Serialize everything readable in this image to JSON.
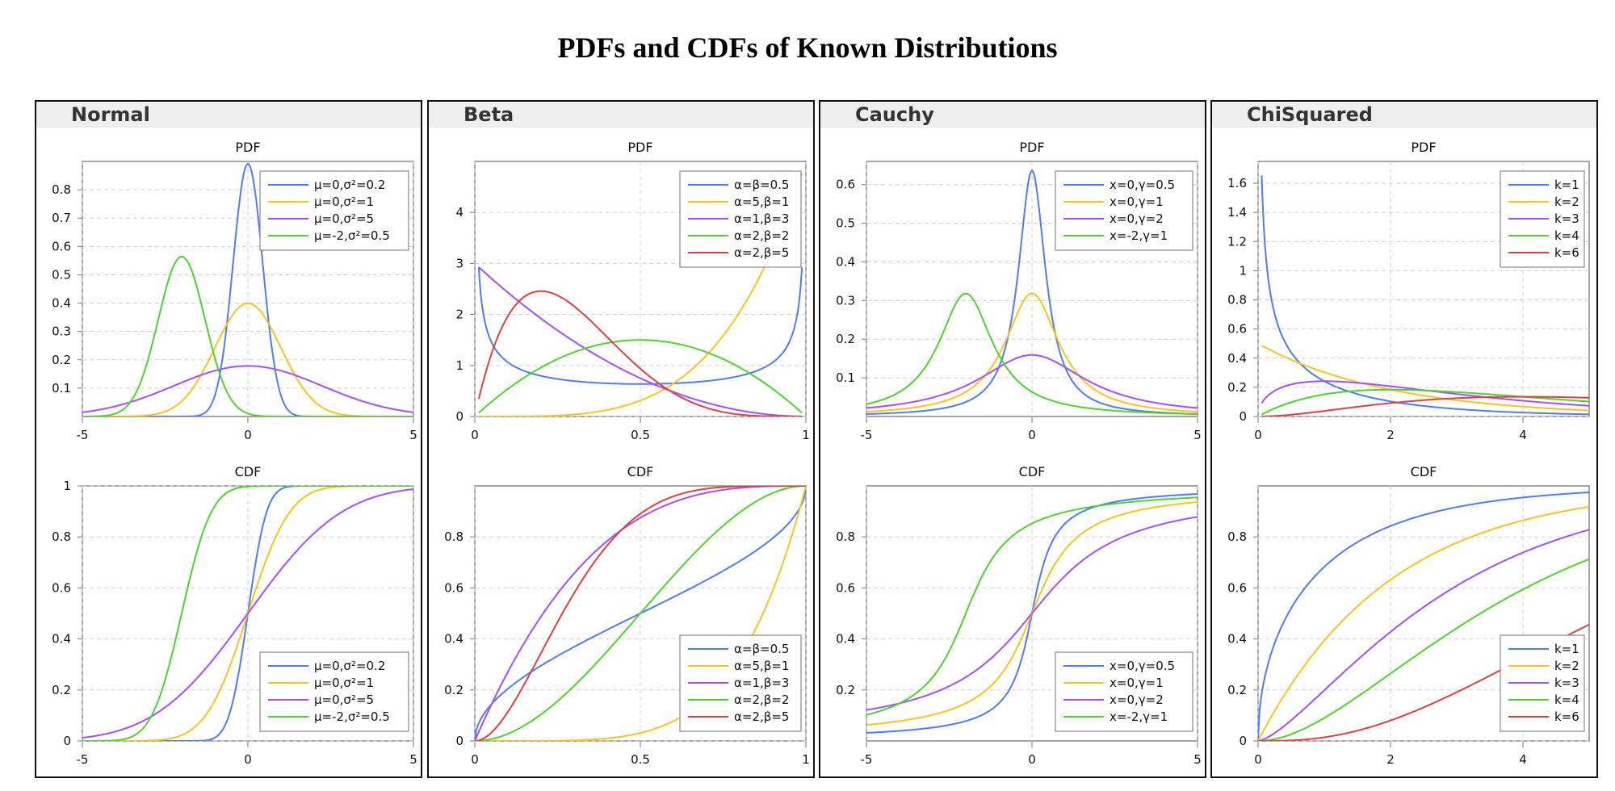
{
  "title": "PDFs and CDFs of Known Distributions",
  "colors": {
    "blue": "#4d7bff",
    "orange": "#ffc21a",
    "purple": "#a64dff",
    "green": "#4dd42b",
    "red": "#e0403d"
  },
  "panels": [
    {
      "name": "Normal",
      "pdf_title": "PDF",
      "cdf_title": "CDF"
    },
    {
      "name": "Beta",
      "pdf_title": "PDF",
      "cdf_title": "CDF"
    },
    {
      "name": "Cauchy",
      "pdf_title": "PDF",
      "cdf_title": "CDF"
    },
    {
      "name": "ChiSquared",
      "pdf_title": "PDF",
      "cdf_title": "CDF"
    }
  ],
  "chart_data": [
    {
      "type": "line",
      "panel": "Normal",
      "title": "PDF",
      "function": "pdf",
      "distribution": "normal",
      "xlim": [
        -5,
        5
      ],
      "ylim": [
        0,
        0.9
      ],
      "xticks": [
        -5,
        0,
        5
      ],
      "yticks": [
        0.1,
        0.2,
        0.3,
        0.4,
        0.5,
        0.6,
        0.7,
        0.8
      ],
      "legend": "top-right",
      "grid": true,
      "series": [
        {
          "name": "μ=0,σ²=0.2",
          "color": "blue",
          "params": [
            0,
            0.2
          ]
        },
        {
          "name": "μ=0,σ²=1",
          "color": "orange",
          "params": [
            0,
            1
          ]
        },
        {
          "name": "μ=0,σ²=5",
          "color": "purple",
          "params": [
            0,
            5
          ]
        },
        {
          "name": "μ=-2,σ²=0.5",
          "color": "green",
          "params": [
            -2,
            0.5
          ]
        }
      ]
    },
    {
      "type": "line",
      "panel": "Normal",
      "title": "CDF",
      "function": "cdf",
      "distribution": "normal",
      "xlim": [
        -5,
        5
      ],
      "ylim": [
        0,
        1
      ],
      "xticks": [
        -5,
        0,
        5
      ],
      "yticks": [
        0,
        0.2,
        0.4,
        0.6,
        0.8,
        1
      ],
      "legend": "bottom-right",
      "grid": true,
      "series": [
        {
          "name": "μ=0,σ²=0.2",
          "color": "blue",
          "params": [
            0,
            0.2
          ]
        },
        {
          "name": "μ=0,σ²=1",
          "color": "orange",
          "params": [
            0,
            1
          ]
        },
        {
          "name": "μ=0,σ²=5",
          "color": "purple",
          "params": [
            0,
            5
          ]
        },
        {
          "name": "μ=-2,σ²=0.5",
          "color": "green",
          "params": [
            -2,
            0.5
          ]
        }
      ]
    },
    {
      "type": "line",
      "panel": "Beta",
      "title": "PDF",
      "function": "pdf",
      "distribution": "beta",
      "xlim": [
        0,
        1
      ],
      "ylim": [
        0,
        5
      ],
      "xticks": [
        0,
        0.5,
        1
      ],
      "yticks": [
        0,
        1,
        2,
        3,
        4
      ],
      "legend": "top-right",
      "grid": true,
      "series": [
        {
          "name": "α=β=0.5",
          "color": "blue",
          "params": [
            0.5,
            0.5
          ]
        },
        {
          "name": "α=5,β=1",
          "color": "orange",
          "params": [
            5,
            1
          ]
        },
        {
          "name": "α=1,β=3",
          "color": "purple",
          "params": [
            1,
            3
          ]
        },
        {
          "name": "α=2,β=2",
          "color": "green",
          "params": [
            2,
            2
          ]
        },
        {
          "name": "α=2,β=5",
          "color": "red",
          "params": [
            2,
            5
          ]
        }
      ]
    },
    {
      "type": "line",
      "panel": "Beta",
      "title": "CDF",
      "function": "cdf",
      "distribution": "beta",
      "xlim": [
        0,
        1
      ],
      "ylim": [
        0,
        1
      ],
      "xticks": [
        0,
        0.5,
        1
      ],
      "yticks": [
        0,
        0.2,
        0.4,
        0.6,
        0.8
      ],
      "legend": "bottom-right",
      "grid": true,
      "series": [
        {
          "name": "α=β=0.5",
          "color": "blue",
          "params": [
            0.5,
            0.5
          ]
        },
        {
          "name": "α=5,β=1",
          "color": "orange",
          "params": [
            5,
            1
          ]
        },
        {
          "name": "α=1,β=3",
          "color": "purple",
          "params": [
            1,
            3
          ]
        },
        {
          "name": "α=2,β=2",
          "color": "green",
          "params": [
            2,
            2
          ]
        },
        {
          "name": "α=2,β=5",
          "color": "red",
          "params": [
            2,
            5
          ]
        }
      ]
    },
    {
      "type": "line",
      "panel": "Cauchy",
      "title": "PDF",
      "function": "pdf",
      "distribution": "cauchy",
      "xlim": [
        -5,
        5
      ],
      "ylim": [
        0,
        0.66
      ],
      "xticks": [
        -5,
        0,
        5
      ],
      "yticks": [
        0.1,
        0.2,
        0.3,
        0.4,
        0.5,
        0.6
      ],
      "legend": "top-right",
      "grid": true,
      "series": [
        {
          "name": "x=0,γ=0.5",
          "color": "blue",
          "params": [
            0,
            0.5
          ]
        },
        {
          "name": "x=0,γ=1",
          "color": "orange",
          "params": [
            0,
            1
          ]
        },
        {
          "name": "x=0,γ=2",
          "color": "purple",
          "params": [
            0,
            2
          ]
        },
        {
          "name": "x=-2,γ=1",
          "color": "green",
          "params": [
            -2,
            1
          ]
        }
      ]
    },
    {
      "type": "line",
      "panel": "Cauchy",
      "title": "CDF",
      "function": "cdf",
      "distribution": "cauchy",
      "xlim": [
        -5,
        5
      ],
      "ylim": [
        0,
        1
      ],
      "xticks": [
        -5,
        0,
        5
      ],
      "yticks": [
        0.2,
        0.4,
        0.6,
        0.8
      ],
      "legend": "bottom-right",
      "grid": true,
      "series": [
        {
          "name": "x=0,γ=0.5",
          "color": "blue",
          "params": [
            0,
            0.5
          ]
        },
        {
          "name": "x=0,γ=1",
          "color": "orange",
          "params": [
            0,
            1
          ]
        },
        {
          "name": "x=0,γ=2",
          "color": "purple",
          "params": [
            0,
            2
          ]
        },
        {
          "name": "x=-2,γ=1",
          "color": "green",
          "params": [
            -2,
            1
          ]
        }
      ]
    },
    {
      "type": "line",
      "panel": "ChiSquared",
      "title": "PDF",
      "function": "pdf",
      "distribution": "chisquared",
      "xlim": [
        0,
        5
      ],
      "ylim": [
        0,
        1.75
      ],
      "xticks": [
        0,
        2,
        4
      ],
      "yticks": [
        0,
        0.2,
        0.4,
        0.6,
        0.8,
        1,
        1.2,
        1.4,
        1.6
      ],
      "legend": "top-right",
      "grid": true,
      "series": [
        {
          "name": "k=1",
          "color": "blue",
          "params": [
            1
          ]
        },
        {
          "name": "k=2",
          "color": "orange",
          "params": [
            2
          ]
        },
        {
          "name": "k=3",
          "color": "purple",
          "params": [
            3
          ]
        },
        {
          "name": "k=4",
          "color": "green",
          "params": [
            4
          ]
        },
        {
          "name": "k=6",
          "color": "red",
          "params": [
            6
          ]
        }
      ]
    },
    {
      "type": "line",
      "panel": "ChiSquared",
      "title": "CDF",
      "function": "cdf",
      "distribution": "chisquared",
      "xlim": [
        0,
        5
      ],
      "ylim": [
        0,
        1
      ],
      "xticks": [
        0,
        2,
        4
      ],
      "yticks": [
        0,
        0.2,
        0.4,
        0.6,
        0.8
      ],
      "legend": "bottom-right",
      "grid": true,
      "series": [
        {
          "name": "k=1",
          "color": "blue",
          "params": [
            1
          ]
        },
        {
          "name": "k=2",
          "color": "orange",
          "params": [
            2
          ]
        },
        {
          "name": "k=3",
          "color": "purple",
          "params": [
            3
          ]
        },
        {
          "name": "k=4",
          "color": "green",
          "params": [
            4
          ]
        },
        {
          "name": "k=6",
          "color": "red",
          "params": [
            6
          ]
        }
      ]
    }
  ]
}
